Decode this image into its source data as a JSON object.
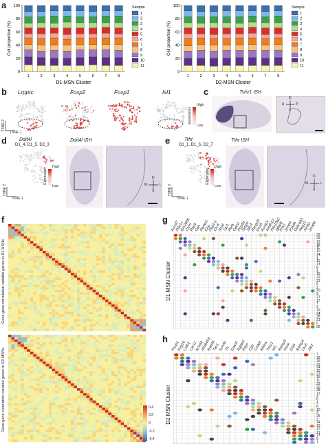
{
  "panels": {
    "a": "a",
    "b": "b",
    "c": "c",
    "d": "d",
    "e": "e",
    "f": "f",
    "g": "g",
    "h": "h"
  },
  "chart_data": [
    {
      "type": "bar",
      "stacked": true,
      "xlabel": "D1-MSN Cluster",
      "ylabel": "Cell proportion (%)",
      "categories": [
        "1",
        "2",
        "3",
        "4",
        "5",
        "6",
        "7",
        "8"
      ],
      "yticks": [
        "0",
        "20",
        "40",
        "60",
        "80",
        "100"
      ],
      "ylim": [
        0,
        100
      ],
      "legend_title": "Sample",
      "legend_placement": "right",
      "series": [
        {
          "name": "1",
          "color": "#3a6fb0",
          "values": [
            9,
            9,
            8,
            8,
            8,
            9,
            8,
            8
          ]
        },
        {
          "name": "2",
          "color": "#7fb8e6",
          "values": [
            8,
            8,
            8,
            8,
            9,
            8,
            8,
            8
          ]
        },
        {
          "name": "3",
          "color": "#3aa04c",
          "values": [
            10,
            9,
            11,
            9,
            9,
            9,
            10,
            10
          ]
        },
        {
          "name": "4",
          "color": "#b6dd8a",
          "values": [
            7,
            8,
            7,
            9,
            8,
            8,
            7,
            8
          ]
        },
        {
          "name": "5",
          "color": "#d7302b",
          "values": [
            9,
            9,
            8,
            10,
            9,
            9,
            9,
            9
          ]
        },
        {
          "name": "6",
          "color": "#f5a5a0",
          "values": [
            6,
            7,
            7,
            7,
            6,
            6,
            7,
            6
          ]
        },
        {
          "name": "7",
          "color": "#ef7d1f",
          "values": [
            10,
            10,
            11,
            9,
            10,
            10,
            10,
            10
          ]
        },
        {
          "name": "8",
          "color": "#f9c27a",
          "values": [
            8,
            9,
            8,
            9,
            8,
            8,
            8,
            9
          ]
        },
        {
          "name": "9",
          "color": "#9a79bf",
          "values": [
            11,
            10,
            12,
            11,
            12,
            11,
            12,
            11
          ]
        },
        {
          "name": "10",
          "color": "#5b2f8a",
          "values": [
            12,
            12,
            11,
            11,
            12,
            12,
            12,
            12
          ]
        },
        {
          "name": "11",
          "color": "#fbf5a6",
          "values": [
            10,
            9,
            9,
            9,
            9,
            10,
            9,
            9
          ]
        }
      ]
    },
    {
      "type": "bar",
      "stacked": true,
      "xlabel": "D2-MSN Cluster",
      "ylabel": "Cell proportion (%)",
      "categories": [
        "1",
        "2",
        "3",
        "4",
        "5",
        "6",
        "7",
        "8"
      ],
      "yticks": [
        "0",
        "20",
        "40",
        "60",
        "80",
        "100"
      ],
      "ylim": [
        0,
        100
      ],
      "legend_title": "Sample",
      "legend_placement": "right",
      "series": [
        {
          "name": "1",
          "color": "#3a6fb0",
          "values": [
            8,
            9,
            9,
            8,
            8,
            8,
            9,
            8
          ]
        },
        {
          "name": "2",
          "color": "#7fb8e6",
          "values": [
            9,
            8,
            8,
            9,
            9,
            8,
            8,
            8
          ]
        },
        {
          "name": "3",
          "color": "#3aa04c",
          "values": [
            9,
            10,
            9,
            9,
            10,
            9,
            9,
            10
          ]
        },
        {
          "name": "4",
          "color": "#b6dd8a",
          "values": [
            8,
            7,
            8,
            8,
            7,
            8,
            8,
            8
          ]
        },
        {
          "name": "5",
          "color": "#d7302b",
          "values": [
            9,
            9,
            10,
            9,
            9,
            9,
            10,
            9
          ]
        },
        {
          "name": "6",
          "color": "#f5a5a0",
          "values": [
            7,
            6,
            6,
            7,
            6,
            7,
            6,
            6
          ]
        },
        {
          "name": "7",
          "color": "#ef7d1f",
          "values": [
            11,
            10,
            10,
            10,
            11,
            10,
            10,
            10
          ]
        },
        {
          "name": "8",
          "color": "#f9c27a",
          "values": [
            8,
            9,
            9,
            8,
            8,
            9,
            8,
            9
          ]
        },
        {
          "name": "9",
          "color": "#9a79bf",
          "values": [
            11,
            12,
            11,
            12,
            11,
            11,
            12,
            11
          ]
        },
        {
          "name": "10",
          "color": "#5b2f8a",
          "values": [
            11,
            11,
            12,
            11,
            12,
            12,
            11,
            12
          ]
        },
        {
          "name": "11",
          "color": "#fbf5a6",
          "values": [
            9,
            9,
            8,
            9,
            9,
            9,
            9,
            9
          ]
        }
      ]
    },
    {
      "type": "heatmap",
      "ylabel": "Gene-gene correlation variable genes in D1 MSNs"
    },
    {
      "type": "heatmap",
      "ylabel": "Gene-gene correlation variable genes in D2 MSNs",
      "colorbar": {
        "ticks": [
          "0.4",
          "0.2",
          "0",
          "-0.2",
          "-0.4"
        ],
        "colors": [
          "#c4302b",
          "#f3a35c",
          "#f6f0a0",
          "#8fc3dd",
          "#2c6ab0"
        ]
      }
    }
  ],
  "b": {
    "genes": [
      "Lrpprc",
      "Foxp2",
      "Foxp1",
      "Isl1"
    ],
    "xaxis": "TSNE 1",
    "yaxis": "TSNE 2",
    "legend": {
      "title": "Expression",
      "high": "High",
      "low": "Low"
    }
  },
  "c": {
    "title": "Tshz1 ISH",
    "compass": {
      "d": "D",
      "v": "V",
      "a": "A",
      "p": "P"
    }
  },
  "d": {
    "gene": "Ddit4l",
    "clusters": "D1_4, D1_5, D2_3",
    "ish": "Ddit4l ISH",
    "xaxis": "TSNE 1",
    "yaxis": "TSNE 2",
    "legend": {
      "title": "Expression",
      "high": "High",
      "low": "Low"
    },
    "compass": {
      "d": "D",
      "v": "V",
      "m": "M",
      "l": "L"
    }
  },
  "e": {
    "gene": "Trhr",
    "clusters": "D1_1, D1_6, D2_7",
    "ish": "Trhr ISH",
    "xaxis": "TSNE 1",
    "yaxis": "TSNE 2",
    "legend": {
      "title": "Expression",
      "high": "High",
      "low": "Low"
    },
    "compass": {
      "d": "D",
      "v": "V",
      "m": "M",
      "l": "L"
    }
  },
  "g": {
    "ylabel": "D1 MSN Cluster",
    "genes": [
      "Accsf7",
      "Pde1c",
      "Gm2686",
      "Crym",
      "Rsp4",
      "Cah",
      "Ramp3",
      "Cnp",
      "Ppp1r1",
      "Cnr4",
      "Nnat",
      "Tac1",
      "Rarb",
      "Cipn2",
      "Pcp4l1",
      "Sytgst",
      "Sdc4",
      "Rasgrf2",
      "Dnah",
      "Kcnip3",
      "Alcdh12",
      "Pde10a2",
      "Igfbp5",
      "Fnx1",
      "Snnp4",
      "Pzkdh",
      "Gabrab3",
      "Neg10",
      "Akrb2",
      "Snapb"
    ],
    "rows": [
      "29",
      "25",
      "12",
      "18",
      "11",
      "10",
      "14",
      "1",
      "15",
      "13",
      "8",
      "4",
      "16",
      "22",
      "23",
      "5",
      "2",
      "20",
      "9",
      "27",
      "17",
      "7",
      "3",
      "19",
      "24",
      "28",
      "21",
      "6",
      "26"
    ]
  },
  "h": {
    "ylabel": "D2 MSN Cluster",
    "genes": [
      "Foxp1",
      "Peg10",
      "Calb1",
      "Car12",
      "Kcnd4",
      "4930453",
      "Rab34",
      "Tac1",
      "Scn4b",
      "Th",
      "Elavl4",
      "Agpat2",
      "Pdyn",
      "Cgn",
      "Ccdc8",
      "Rbm4",
      "Tshz1",
      "Isl1",
      "Ramp3",
      "Penk",
      "Dlx5",
      "Ramp4",
      "Lhx6",
      "Zfp1"
    ],
    "rows": [
      "7",
      "18",
      "26",
      "22",
      "24",
      "15",
      "27",
      "16",
      "11",
      "23",
      "20",
      "28",
      "12",
      "2",
      "6",
      "4",
      "8",
      "10",
      "9",
      "25",
      "3",
      "14",
      "19",
      "17",
      "21",
      "13",
      "5",
      "1"
    ]
  }
}
